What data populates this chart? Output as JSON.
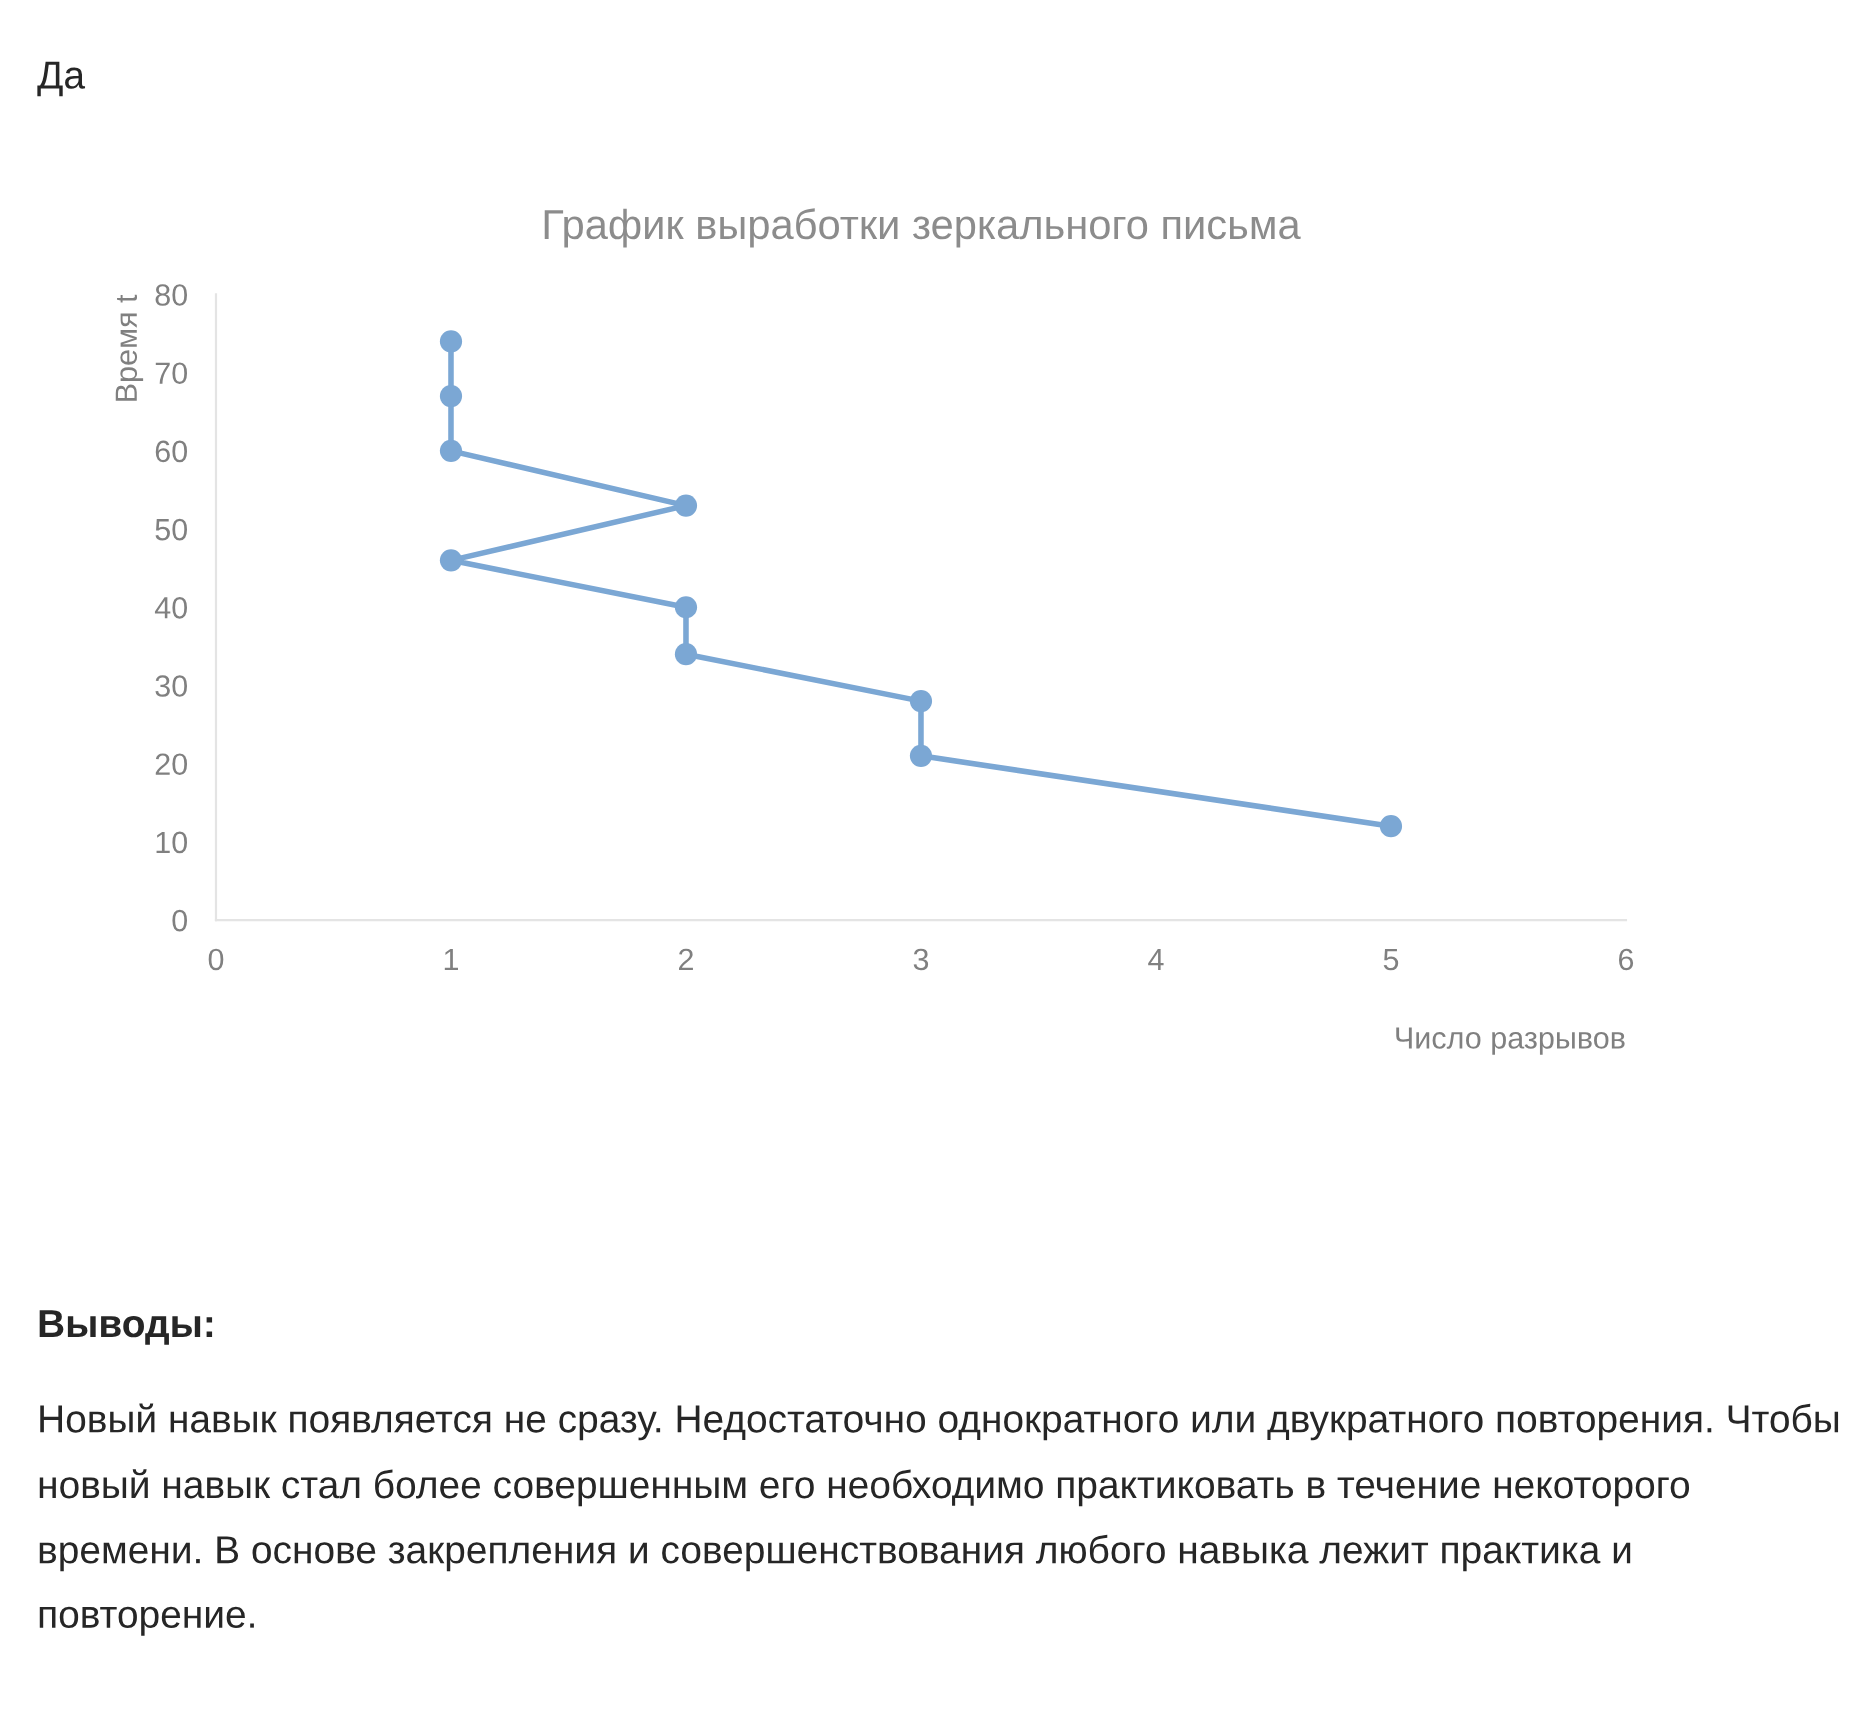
{
  "chart_data": {
    "type": "line",
    "title": "График выработки зеркального письма",
    "xlabel": "Число разрывов",
    "ylabel": "Время t",
    "series": [
      {
        "color": "#7ba7d4",
        "x": [
          1,
          1,
          1,
          2,
          1,
          2,
          2,
          3,
          3,
          5
        ],
        "values": [
          74,
          67,
          60,
          53,
          46,
          40,
          34,
          28,
          21,
          12
        ]
      }
    ],
    "xlim": [
      0,
      6
    ],
    "xticks": [
      0,
      1,
      2,
      3,
      4,
      5,
      6
    ],
    "ylim": [
      0,
      80
    ],
    "yticks": [
      0,
      10,
      20,
      30,
      40,
      50,
      60,
      70,
      80
    ],
    "grid": false,
    "legend": false,
    "marker": "circle",
    "line_style": "solid",
    "annotations": [
      "Да",
      "Выводы:",
      "Новый навык появляется не сразу. Недостаточно однократного или двукратного повторения. Чтобы новый навык стал более совершенным его необходимо практиковать в течение некоторого времени. В основе закрепления и совершенствования любого навыка лежит практика и повторение."
    ]
  }
}
